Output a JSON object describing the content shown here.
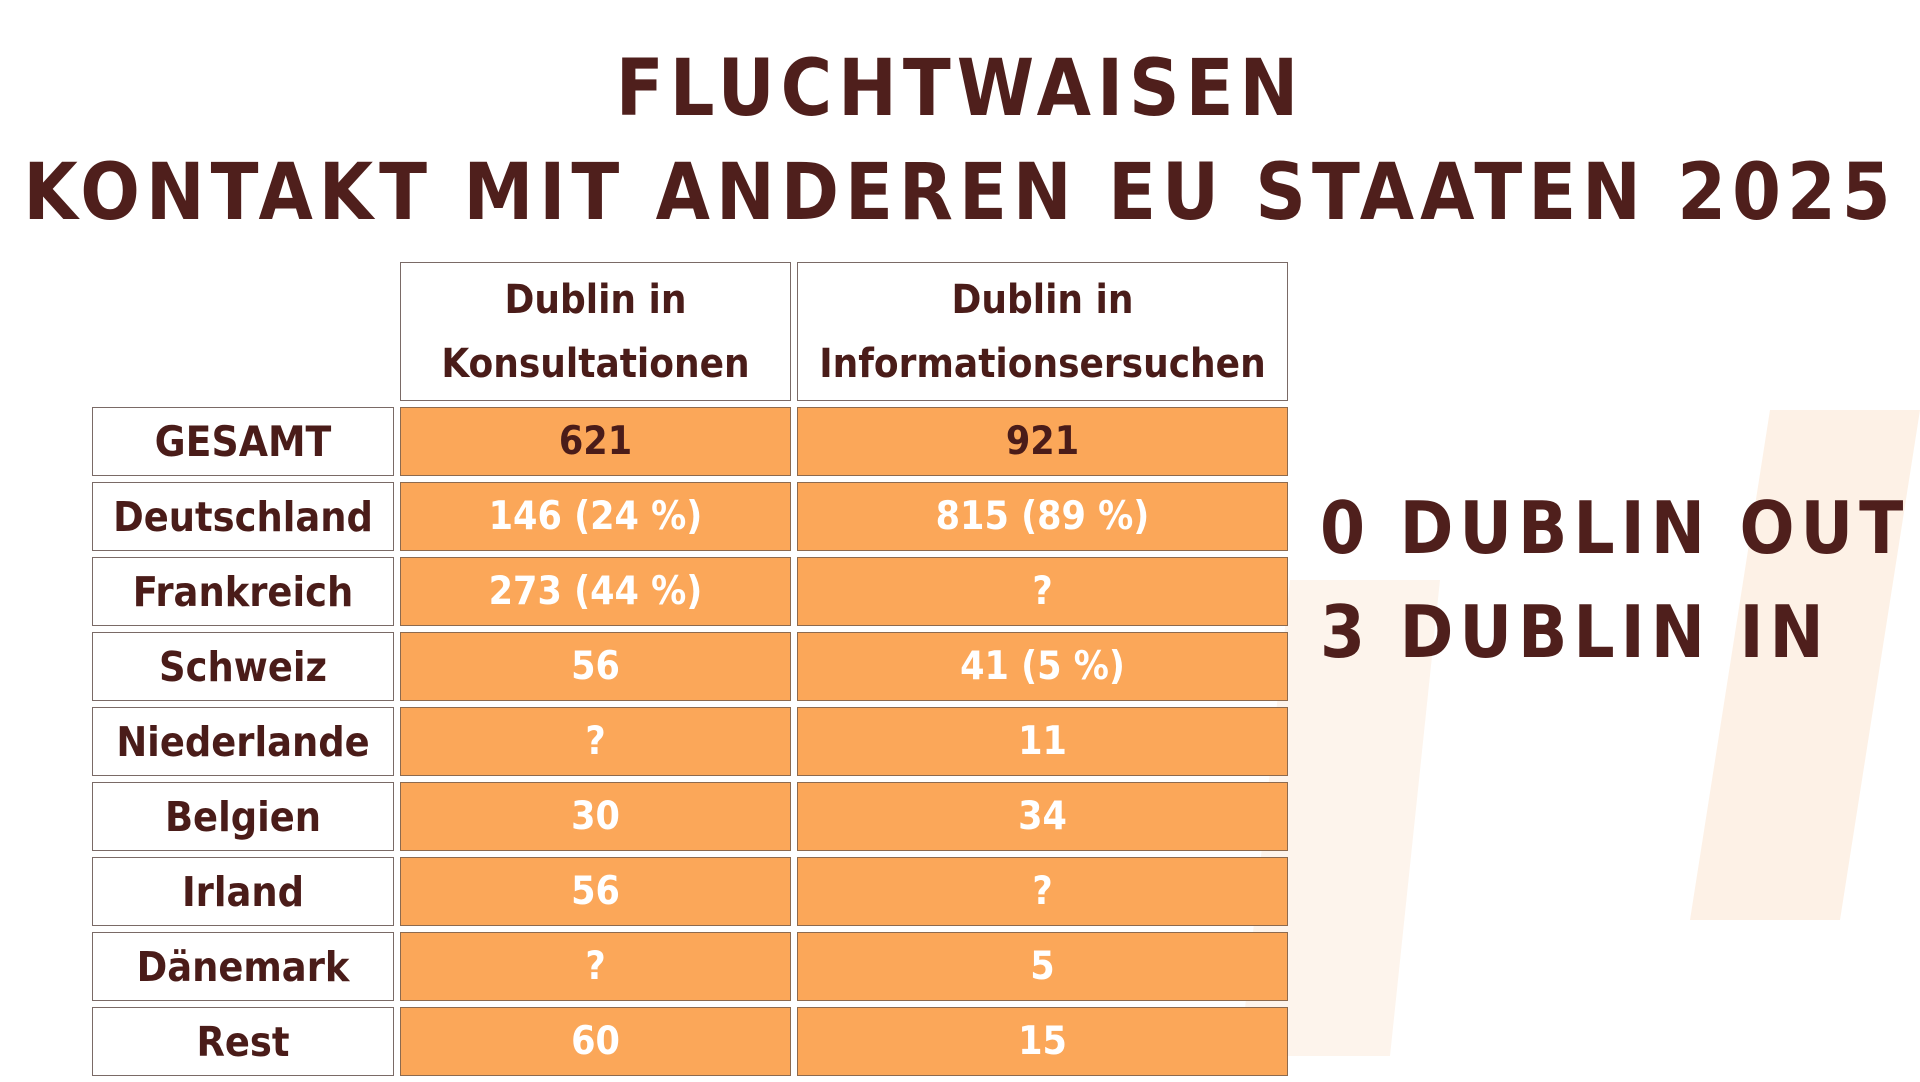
{
  "title": {
    "line1": "FLUCHTWAISEN",
    "line2": "KONTAKT MIT ANDEREN EU STAATEN 2025"
  },
  "table": {
    "columns": [
      "",
      "Dublin in Konsultationen",
      "Dublin in Informationsersuchen"
    ],
    "rows": [
      {
        "label": "GESAMT",
        "konsultationen": "621",
        "informationsersuchen": "921"
      },
      {
        "label": "Deutschland",
        "konsultationen": "146 (24 %)",
        "informationsersuchen": "815 (89 %)"
      },
      {
        "label": "Frankreich",
        "konsultationen": "273 (44 %)",
        "informationsersuchen": "?"
      },
      {
        "label": "Schweiz",
        "konsultationen": "56",
        "informationsersuchen": "41 (5 %)"
      },
      {
        "label": "Niederlande",
        "konsultationen": "?",
        "informationsersuchen": "11"
      },
      {
        "label": "Belgien",
        "konsultationen": "30",
        "informationsersuchen": "34"
      },
      {
        "label": "Irland",
        "konsultationen": "56",
        "informationsersuchen": "?"
      },
      {
        "label": "Dänemark",
        "konsultationen": "?",
        "informationsersuchen": "5"
      },
      {
        "label": "Rest",
        "konsultationen": "60",
        "informationsersuchen": "15"
      }
    ]
  },
  "side_notes": [
    "0 DUBLIN OUT",
    "3 DUBLIN IN"
  ],
  "colors": {
    "accent_orange": "#fba759",
    "text_brown": "#4f1f1c",
    "watermark": "#fdf1e6"
  }
}
